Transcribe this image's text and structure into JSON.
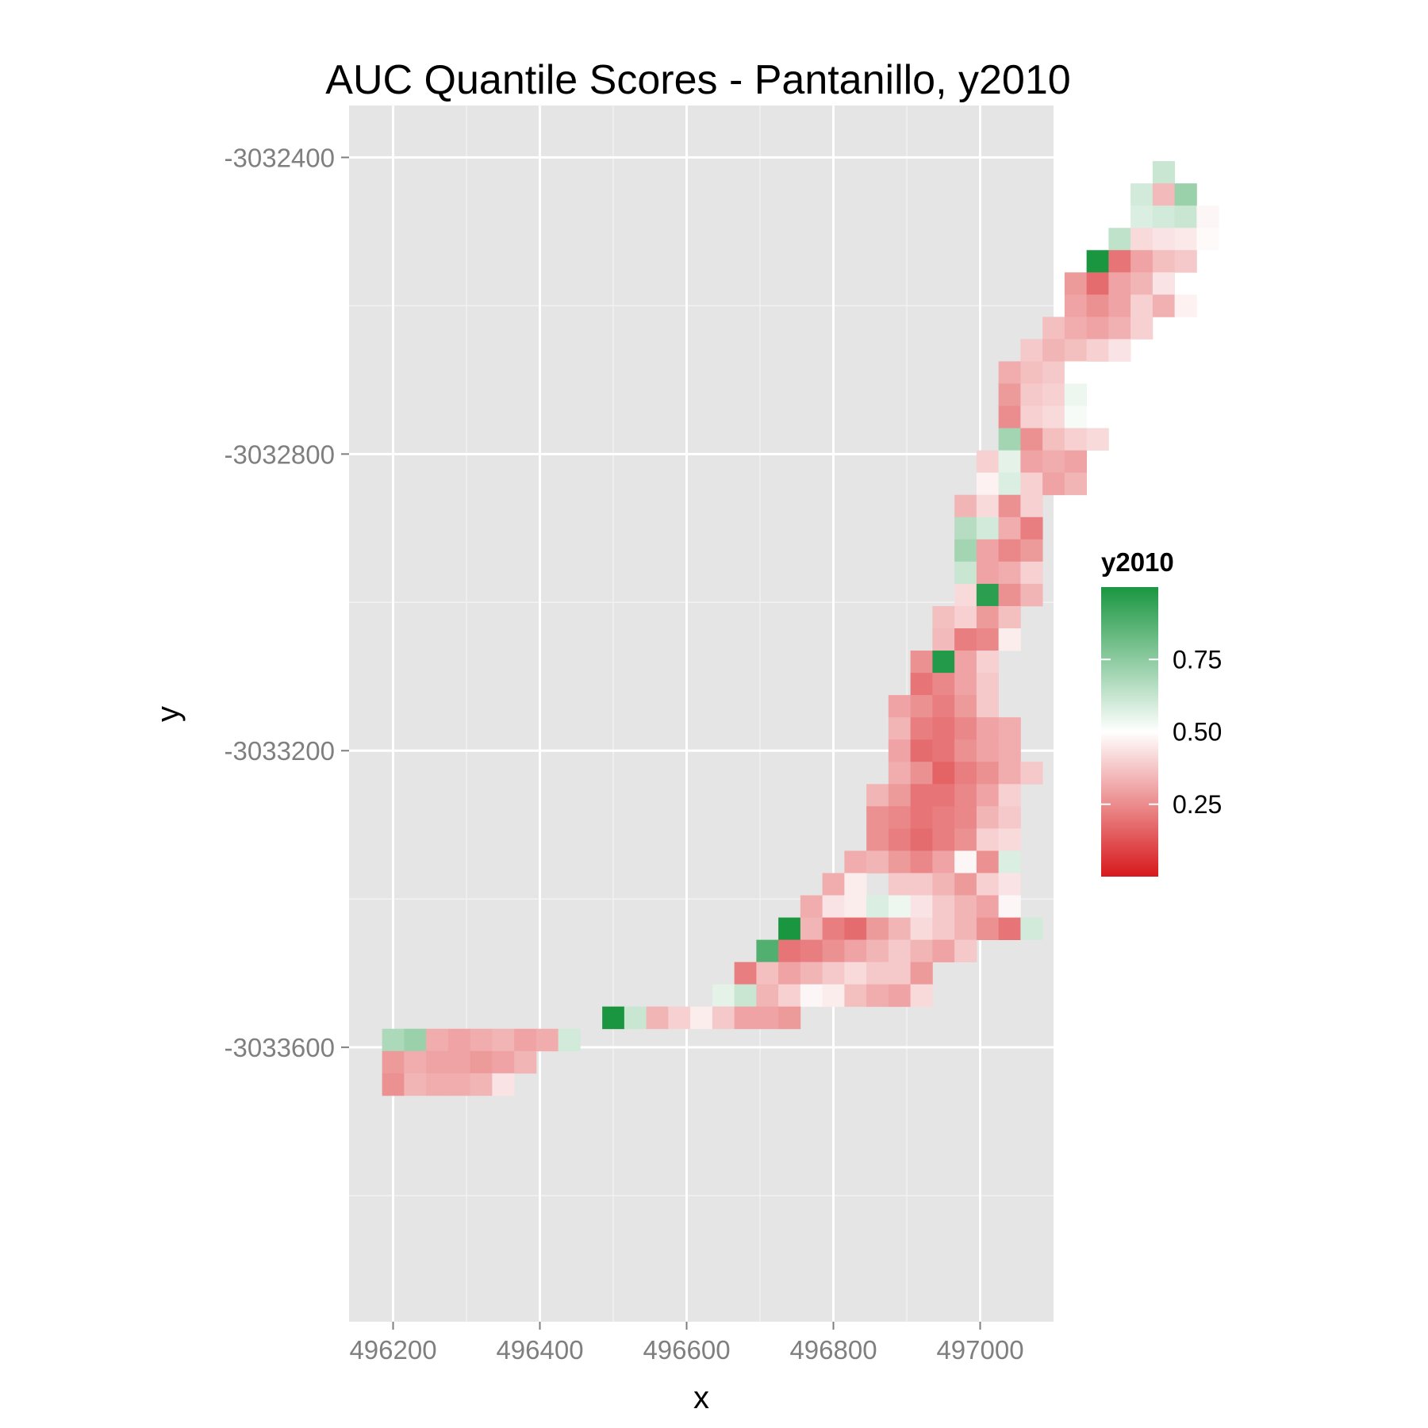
{
  "chart_data": {
    "type": "heatmap",
    "title": "AUC Quantile Scores - Pantanillo, y2010",
    "xlabel": "x",
    "ylabel": "y",
    "x_ticks": [
      496200,
      496400,
      496600,
      496800,
      497000
    ],
    "x_tick_labels": [
      "496200",
      "496400",
      "496600",
      "496800",
      "497000"
    ],
    "y_ticks": [
      -3032400,
      -3032800,
      -3033200,
      -3033600
    ],
    "y_tick_labels": [
      "-3032400",
      "-3032800",
      "-3033200",
      "-3033600"
    ],
    "xlim": [
      496140,
      497100
    ],
    "ylim": [
      -3033970,
      -3032330
    ],
    "grid": true,
    "cell_size": 30,
    "grid_origin": {
      "x": 496200,
      "y": -3032420
    },
    "legend": {
      "title": "y2010",
      "position": "right",
      "breaks": [
        0.25,
        0.5,
        0.75
      ],
      "break_labels": [
        "0.25",
        "0.50",
        "0.75"
      ],
      "range": [
        0,
        1
      ],
      "low_color": "#d7191c",
      "mid_color": "#ffffff",
      "high_color": "#1a9641"
    },
    "cells": [
      [
        0,
        22,
        0.62
      ],
      [
        0,
        21,
        0.6
      ],
      [
        0,
        22,
        0.35
      ],
      [
        0,
        23,
        0.72
      ],
      [
        0,
        20,
        0.58
      ],
      [
        0,
        21,
        0.6
      ],
      [
        0,
        22,
        0.62
      ],
      [
        0,
        23,
        0.48
      ],
      [
        0,
        19,
        0.64
      ],
      [
        0,
        20,
        0.42
      ],
      [
        0,
        21,
        0.44
      ],
      [
        0,
        22,
        0.45
      ],
      [
        0,
        23,
        0.49
      ],
      [
        0,
        18,
        1.0
      ],
      [
        0,
        19,
        0.2
      ],
      [
        0,
        20,
        0.3
      ],
      [
        0,
        21,
        0.36
      ],
      [
        0,
        22,
        0.38
      ],
      [
        0,
        17,
        0.28
      ],
      [
        0,
        18,
        0.18
      ],
      [
        0,
        19,
        0.3
      ],
      [
        0,
        20,
        0.34
      ],
      [
        0,
        21,
        0.44
      ],
      [
        0,
        16,
        0.3
      ],
      [
        0,
        17,
        0.26
      ],
      [
        0,
        18,
        0.3
      ],
      [
        0,
        19,
        0.4
      ],
      [
        0,
        20,
        0.33
      ],
      [
        0,
        21,
        0.47
      ],
      [
        0,
        15,
        0.36
      ],
      [
        0,
        16,
        0.32
      ],
      [
        0,
        17,
        0.3
      ],
      [
        0,
        18,
        0.33
      ],
      [
        0,
        19,
        0.4
      ],
      [
        0,
        14,
        0.38
      ],
      [
        0,
        15,
        0.34
      ],
      [
        0,
        16,
        0.36
      ],
      [
        0,
        17,
        0.4
      ],
      [
        0,
        18,
        0.44
      ],
      [
        0,
        14,
        0.32
      ],
      [
        0,
        15,
        0.36
      ],
      [
        0,
        16,
        0.38
      ],
      [
        0,
        17,
        0.5
      ],
      [
        0,
        14,
        0.28
      ],
      [
        0,
        15,
        0.38
      ],
      [
        0,
        16,
        0.4
      ],
      [
        0,
        17,
        0.54
      ],
      [
        0,
        14,
        0.25
      ],
      [
        0,
        15,
        0.4
      ],
      [
        0,
        16,
        0.42
      ],
      [
        0,
        17,
        0.52
      ],
      [
        0,
        14,
        0.7
      ],
      [
        0,
        15,
        0.26
      ],
      [
        0,
        16,
        0.36
      ],
      [
        0,
        17,
        0.4
      ],
      [
        0,
        18,
        0.42
      ],
      [
        0,
        13,
        0.4
      ],
      [
        0,
        14,
        0.56
      ],
      [
        0,
        15,
        0.3
      ],
      [
        0,
        16,
        0.32
      ],
      [
        0,
        17,
        0.3
      ],
      [
        0,
        13,
        0.47
      ],
      [
        0,
        14,
        0.58
      ],
      [
        0,
        15,
        0.4
      ],
      [
        0,
        16,
        0.3
      ],
      [
        0,
        17,
        0.34
      ],
      [
        0,
        13,
        0.34
      ],
      [
        0,
        14,
        0.42
      ],
      [
        0,
        15,
        0.26
      ],
      [
        0,
        16,
        0.4
      ],
      [
        0,
        13,
        0.66
      ],
      [
        0,
        14,
        0.6
      ],
      [
        0,
        15,
        0.32
      ],
      [
        0,
        16,
        0.22
      ],
      [
        0,
        13,
        0.7
      ],
      [
        0,
        14,
        0.3
      ],
      [
        0,
        15,
        0.24
      ],
      [
        0,
        16,
        0.28
      ],
      [
        0,
        13,
        0.62
      ],
      [
        0,
        14,
        0.3
      ],
      [
        0,
        15,
        0.32
      ],
      [
        0,
        16,
        0.4
      ],
      [
        0,
        12,
        0.42
      ],
      [
        0,
        13,
        0.96
      ],
      [
        0,
        14,
        0.26
      ],
      [
        0,
        15,
        0.34
      ],
      [
        0,
        12,
        0.36
      ],
      [
        0,
        13,
        0.4
      ],
      [
        0,
        14,
        0.28
      ],
      [
        0,
        15,
        0.36
      ],
      [
        0,
        12,
        0.35
      ],
      [
        0,
        13,
        0.22
      ],
      [
        0,
        14,
        0.24
      ],
      [
        0,
        15,
        0.46
      ],
      [
        0,
        12,
        0.26
      ],
      [
        0,
        13,
        0.98
      ],
      [
        0,
        14,
        0.3
      ],
      [
        0,
        15,
        0.4
      ],
      [
        0,
        12,
        0.2
      ],
      [
        0,
        13,
        0.24
      ],
      [
        0,
        14,
        0.3
      ],
      [
        0,
        15,
        0.38
      ],
      [
        0,
        11,
        0.3
      ],
      [
        0,
        12,
        0.26
      ],
      [
        0,
        13,
        0.22
      ],
      [
        0,
        14,
        0.28
      ],
      [
        0,
        15,
        0.38
      ],
      [
        0,
        10,
        0.34
      ],
      [
        0,
        11,
        0.22
      ],
      [
        0,
        12,
        0.2
      ],
      [
        0,
        13,
        0.24
      ],
      [
        0,
        14,
        0.3
      ],
      [
        0,
        15,
        0.32
      ],
      [
        0,
        10,
        0.3
      ],
      [
        0,
        11,
        0.18
      ],
      [
        0,
        12,
        0.2
      ],
      [
        0,
        13,
        0.26
      ],
      [
        0,
        14,
        0.3
      ],
      [
        0,
        15,
        0.32
      ],
      [
        0,
        9,
        0.32
      ],
      [
        0,
        10,
        0.26
      ],
      [
        0,
        11,
        0.16
      ],
      [
        0,
        12,
        0.22
      ],
      [
        0,
        13,
        0.26
      ],
      [
        0,
        14,
        0.32
      ],
      [
        0,
        15,
        0.38
      ],
      [
        0,
        8,
        0.34
      ],
      [
        0,
        9,
        0.28
      ],
      [
        0,
        10,
        0.2
      ],
      [
        0,
        11,
        0.2
      ],
      [
        0,
        12,
        0.24
      ],
      [
        0,
        13,
        0.3
      ],
      [
        0,
        14,
        0.4
      ],
      [
        0,
        7,
        0.26
      ],
      [
        0,
        8,
        0.24
      ],
      [
        0,
        9,
        0.2
      ],
      [
        0,
        10,
        0.22
      ],
      [
        0,
        11,
        0.24
      ],
      [
        0,
        12,
        0.34
      ],
      [
        0,
        13,
        0.38
      ],
      [
        0,
        6,
        0.26
      ],
      [
        0,
        7,
        0.22
      ],
      [
        0,
        8,
        0.18
      ],
      [
        0,
        9,
        0.22
      ],
      [
        0,
        10,
        0.26
      ],
      [
        0,
        11,
        0.4
      ],
      [
        0,
        12,
        0.42
      ],
      [
        0,
        5,
        0.32
      ],
      [
        0,
        6,
        0.34
      ],
      [
        0,
        7,
        0.28
      ],
      [
        0,
        8,
        0.24
      ],
      [
        0,
        9,
        0.3
      ],
      [
        0,
        10,
        0.48
      ],
      [
        0,
        11,
        0.26
      ],
      [
        0,
        12,
        0.58
      ],
      [
        0,
        0,
        0.32
      ],
      [
        0,
        1,
        0.46
      ],
      [
        0,
        3,
        0.38
      ],
      [
        0,
        4,
        0.38
      ],
      [
        0,
        5,
        0.34
      ],
      [
        0,
        6,
        0.28
      ],
      [
        0,
        7,
        0.4
      ],
      [
        0,
        8,
        0.44
      ],
      [
        0,
        0,
        0.32
      ],
      [
        0,
        1,
        0.44
      ],
      [
        0,
        2,
        0.46
      ],
      [
        0,
        3,
        0.58
      ],
      [
        0,
        4,
        0.54
      ],
      [
        0,
        5,
        0.44
      ],
      [
        0,
        6,
        0.38
      ],
      [
        0,
        7,
        0.34
      ],
      [
        0,
        8,
        0.3
      ],
      [
        0,
        9,
        0.48
      ],
      [
        0,
        0,
        1.0
      ],
      [
        0,
        1,
        0.34
      ],
      [
        0,
        2,
        0.22
      ],
      [
        0,
        3,
        0.18
      ],
      [
        0,
        4,
        0.28
      ],
      [
        0,
        5,
        0.34
      ],
      [
        0,
        6,
        0.42
      ],
      [
        0,
        7,
        0.38
      ],
      [
        0,
        8,
        0.34
      ],
      [
        0,
        9,
        0.26
      ],
      [
        0,
        10,
        0.2
      ],
      [
        0,
        11,
        0.6
      ],
      [
        0,
        1,
        0.88
      ],
      [
        0,
        2,
        0.2
      ],
      [
        0,
        3,
        0.22
      ],
      [
        0,
        4,
        0.26
      ],
      [
        0,
        5,
        0.3
      ],
      [
        0,
        6,
        0.34
      ],
      [
        0,
        7,
        0.38
      ],
      [
        0,
        8,
        0.34
      ],
      [
        0,
        9,
        0.3
      ],
      [
        0,
        10,
        0.38
      ],
      [
        0,
        0,
        0.22
      ],
      [
        0,
        1,
        0.36
      ],
      [
        0,
        2,
        0.3
      ],
      [
        0,
        3,
        0.34
      ],
      [
        0,
        4,
        0.38
      ],
      [
        0,
        5,
        0.42
      ],
      [
        0,
        6,
        0.38
      ],
      [
        0,
        7,
        0.38
      ],
      [
        0,
        8,
        0.28
      ],
      [
        0,
        0,
        0.56
      ],
      [
        0,
        1,
        0.62
      ],
      [
        0,
        2,
        0.34
      ],
      [
        0,
        3,
        0.4
      ],
      [
        0,
        4,
        0.48
      ],
      [
        0,
        5,
        0.46
      ],
      [
        0,
        6,
        0.36
      ],
      [
        0,
        7,
        0.32
      ],
      [
        0,
        8,
        0.3
      ],
      [
        0,
        9,
        0.42
      ],
      [
        0,
        0,
        1.0
      ],
      [
        0,
        1,
        0.62
      ],
      [
        0,
        2,
        0.34
      ],
      [
        0,
        3,
        0.4
      ],
      [
        0,
        4,
        0.46
      ],
      [
        0,
        5,
        0.38
      ],
      [
        0,
        6,
        0.3
      ],
      [
        0,
        7,
        0.3
      ],
      [
        0,
        8,
        0.28
      ],
      [
        0,
        0,
        0.68
      ],
      [
        0,
        1,
        0.72
      ],
      [
        0,
        2,
        0.32
      ],
      [
        0,
        3,
        0.3
      ],
      [
        0,
        4,
        0.32
      ],
      [
        0,
        5,
        0.34
      ],
      [
        0,
        6,
        0.3
      ],
      [
        0,
        7,
        0.32
      ],
      [
        0,
        8,
        0.6
      ],
      [
        0,
        1,
        0.28
      ],
      [
        0,
        2,
        0.32
      ],
      [
        0,
        3,
        0.3
      ],
      [
        0,
        4,
        0.3
      ],
      [
        0,
        5,
        0.28
      ],
      [
        0,
        6,
        0.3
      ],
      [
        0,
        7,
        0.34
      ],
      [
        0,
        1,
        0.26
      ],
      [
        0,
        2,
        0.34
      ],
      [
        0,
        3,
        0.32
      ],
      [
        0,
        4,
        0.32
      ],
      [
        0,
        5,
        0.34
      ],
      [
        0,
        6,
        0.44
      ]
    ]
  }
}
